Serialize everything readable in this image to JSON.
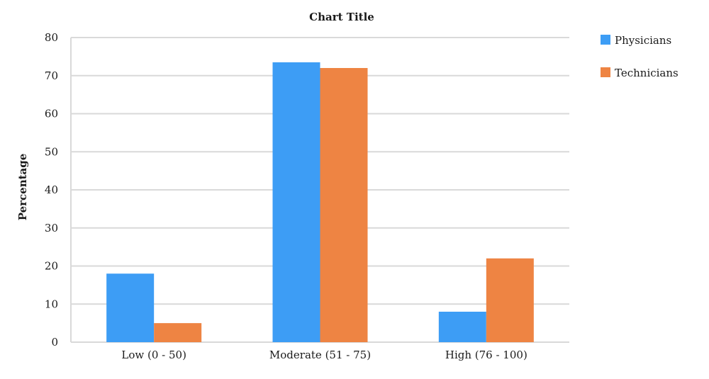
{
  "chart_data": {
    "type": "bar",
    "title": "Chart Title",
    "xlabel": "",
    "ylabel": "Percentage",
    "ylim": [
      0,
      80
    ],
    "yticks": [
      0,
      10,
      20,
      30,
      40,
      50,
      60,
      70,
      80
    ],
    "grid": true,
    "legend_position": "right",
    "categories": [
      "Low (0 - 50)",
      "Moderate (51 - 75)",
      "High (76 - 100)"
    ],
    "series": [
      {
        "name": "Physicians",
        "color": "#3d9df5",
        "values": [
          18,
          73.5,
          8
        ]
      },
      {
        "name": "Technicians",
        "color": "#ee8443",
        "values": [
          5,
          72,
          22
        ]
      }
    ]
  }
}
